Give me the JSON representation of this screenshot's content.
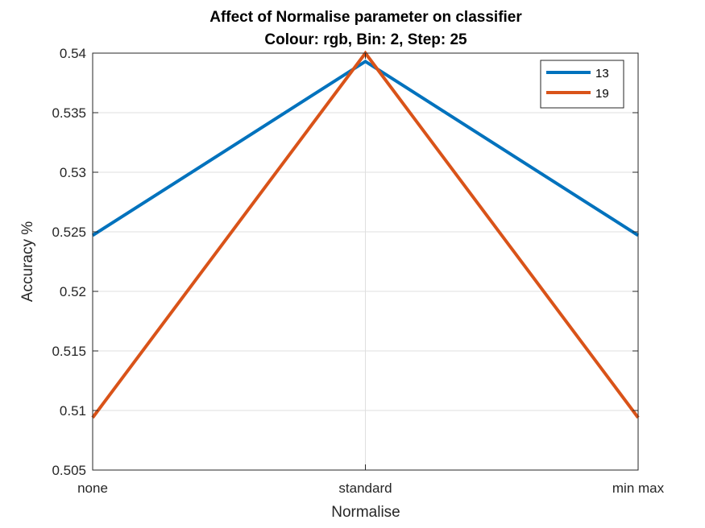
{
  "chart_data": {
    "type": "line",
    "title": "Affect of Normalise parameter on classifier",
    "subtitle": "Colour: rgb, Bin: 2, Step: 25",
    "xlabel": "Normalise",
    "ylabel": "Accuracy %",
    "categories": [
      "none",
      "standard",
      "min max"
    ],
    "ylim": [
      0.505,
      0.54
    ],
    "yticks": [
      "0.505",
      "0.51",
      "0.515",
      "0.52",
      "0.525",
      "0.53",
      "0.535",
      "0.54"
    ],
    "grid": true,
    "legend_position": "top-right",
    "series": [
      {
        "name": "13",
        "values": [
          0.5247,
          0.5393,
          0.5247
        ],
        "color": "#0072BD"
      },
      {
        "name": "19",
        "values": [
          0.5094,
          0.54,
          0.5094
        ],
        "color": "#D95319"
      }
    ]
  }
}
